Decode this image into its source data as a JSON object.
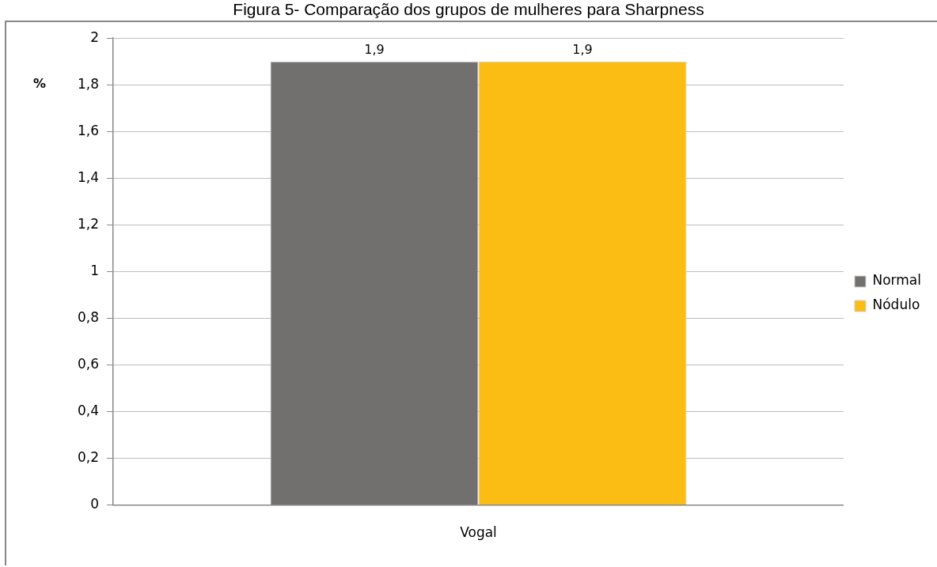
{
  "chart_data": {
    "type": "bar",
    "title": "Figura 5- Comparação dos grupos de mulheres para Sharpness",
    "ylabel": "%",
    "categories": [
      "Vogal"
    ],
    "series": [
      {
        "name": "Normal",
        "color": "#72706e",
        "values": [
          1.9
        ],
        "value_labels": [
          "1,9"
        ]
      },
      {
        "name": "Nódulo",
        "color": "#fbbd13",
        "values": [
          1.9
        ],
        "value_labels": [
          "1,9"
        ]
      }
    ],
    "ylim": [
      0,
      2
    ],
    "yticks": [
      0,
      {
        "value": 0.2,
        "label": "0,2"
      },
      {
        "value": 0.4,
        "label": "0,4"
      },
      {
        "value": 0.6,
        "label": "0,6"
      },
      {
        "value": 0.8,
        "label": "0,8"
      },
      1,
      {
        "value": 1.2,
        "label": "1,2"
      },
      {
        "value": 1.4,
        "label": "1,4"
      },
      {
        "value": 1.6,
        "label": "1,6"
      },
      {
        "value": 1.8,
        "label": "1,8"
      },
      2
    ],
    "grid": "y",
    "legend": "right"
  }
}
